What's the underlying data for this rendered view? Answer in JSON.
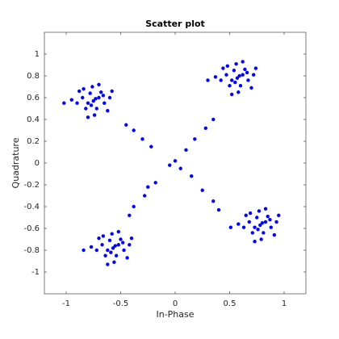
{
  "chart_data": {
    "type": "scatter",
    "title": "Scatter plot",
    "xlabel": "In-Phase",
    "ylabel": "Quadrature",
    "color": "#0000ff",
    "xlim": [
      -1.2,
      1.2
    ],
    "ylim": [
      -1.2,
      1.2
    ],
    "xticks": [
      -1,
      -0.5,
      0,
      0.5,
      1
    ],
    "yticks": [
      -1,
      -0.8,
      -0.6,
      -0.4,
      -0.2,
      0,
      0.2,
      0.4,
      0.6,
      0.8,
      1
    ],
    "x": [
      -0.75,
      -0.7,
      -0.8,
      -0.72,
      -0.78,
      -0.85,
      -0.65,
      -0.68,
      -0.82,
      -0.76,
      -0.9,
      -0.6,
      -0.74,
      -0.88,
      -0.62,
      -0.95,
      -0.7,
      -0.8,
      -0.58,
      -1.02,
      -0.73,
      -0.77,
      -0.84,
      -0.66,
      0.57,
      0.62,
      0.52,
      0.6,
      0.54,
      0.47,
      0.67,
      0.64,
      0.5,
      0.56,
      0.42,
      0.72,
      0.58,
      0.44,
      0.7,
      0.37,
      0.62,
      0.52,
      0.74,
      0.3,
      0.59,
      0.55,
      0.48,
      0.66,
      -0.57,
      -0.52,
      -0.62,
      -0.54,
      -0.6,
      -0.67,
      -0.47,
      -0.5,
      -0.64,
      -0.58,
      -0.72,
      -0.42,
      -0.56,
      -0.7,
      -0.44,
      -0.77,
      -0.52,
      -0.62,
      -0.4,
      -0.84,
      -0.55,
      -0.59,
      -0.66,
      -0.48,
      0.78,
      0.83,
      0.73,
      0.81,
      0.75,
      0.68,
      0.88,
      0.85,
      0.71,
      0.77,
      0.63,
      0.93,
      0.79,
      0.65,
      0.91,
      0.58,
      0.83,
      0.73,
      0.95,
      0.51,
      0.8,
      0.76,
      0.69,
      0.87,
      -0.45,
      -0.38,
      -0.3,
      -0.22,
      0.0,
      0.05,
      0.15,
      0.25,
      0.35,
      0.4,
      0.35,
      0.28,
      0.18,
      0.1,
      -0.05,
      -0.18,
      -0.28,
      -0.38,
      -0.42,
      -0.25
    ],
    "y": [
      0.57,
      0.6,
      0.55,
      0.5,
      0.64,
      0.6,
      0.55,
      0.65,
      0.5,
      0.7,
      0.55,
      0.6,
      0.44,
      0.66,
      0.48,
      0.58,
      0.72,
      0.42,
      0.66,
      0.55,
      0.59,
      0.53,
      0.68,
      0.62,
      0.78,
      0.81,
      0.76,
      0.71,
      0.85,
      0.81,
      0.76,
      0.86,
      0.71,
      0.91,
      0.76,
      0.81,
      0.65,
      0.87,
      0.69,
      0.79,
      0.93,
      0.63,
      0.87,
      0.76,
      0.8,
      0.74,
      0.89,
      0.83,
      -0.78,
      -0.75,
      -0.8,
      -0.85,
      -0.71,
      -0.75,
      -0.8,
      -0.7,
      -0.85,
      -0.65,
      -0.8,
      -0.75,
      -0.91,
      -0.69,
      -0.87,
      -0.77,
      -0.63,
      -0.93,
      -0.69,
      -0.8,
      -0.76,
      -0.82,
      -0.67,
      -0.73,
      -0.57,
      -0.54,
      -0.59,
      -0.64,
      -0.5,
      -0.54,
      -0.59,
      -0.49,
      -0.64,
      -0.44,
      -0.59,
      -0.54,
      -0.7,
      -0.48,
      -0.66,
      -0.56,
      -0.42,
      -0.72,
      -0.48,
      -0.59,
      -0.55,
      -0.61,
      -0.46,
      -0.52,
      0.35,
      0.3,
      0.22,
      0.15,
      0.02,
      -0.05,
      -0.12,
      -0.25,
      -0.35,
      -0.43,
      0.4,
      0.32,
      0.22,
      0.12,
      -0.02,
      -0.18,
      -0.3,
      -0.4,
      -0.48,
      -0.22
    ]
  }
}
